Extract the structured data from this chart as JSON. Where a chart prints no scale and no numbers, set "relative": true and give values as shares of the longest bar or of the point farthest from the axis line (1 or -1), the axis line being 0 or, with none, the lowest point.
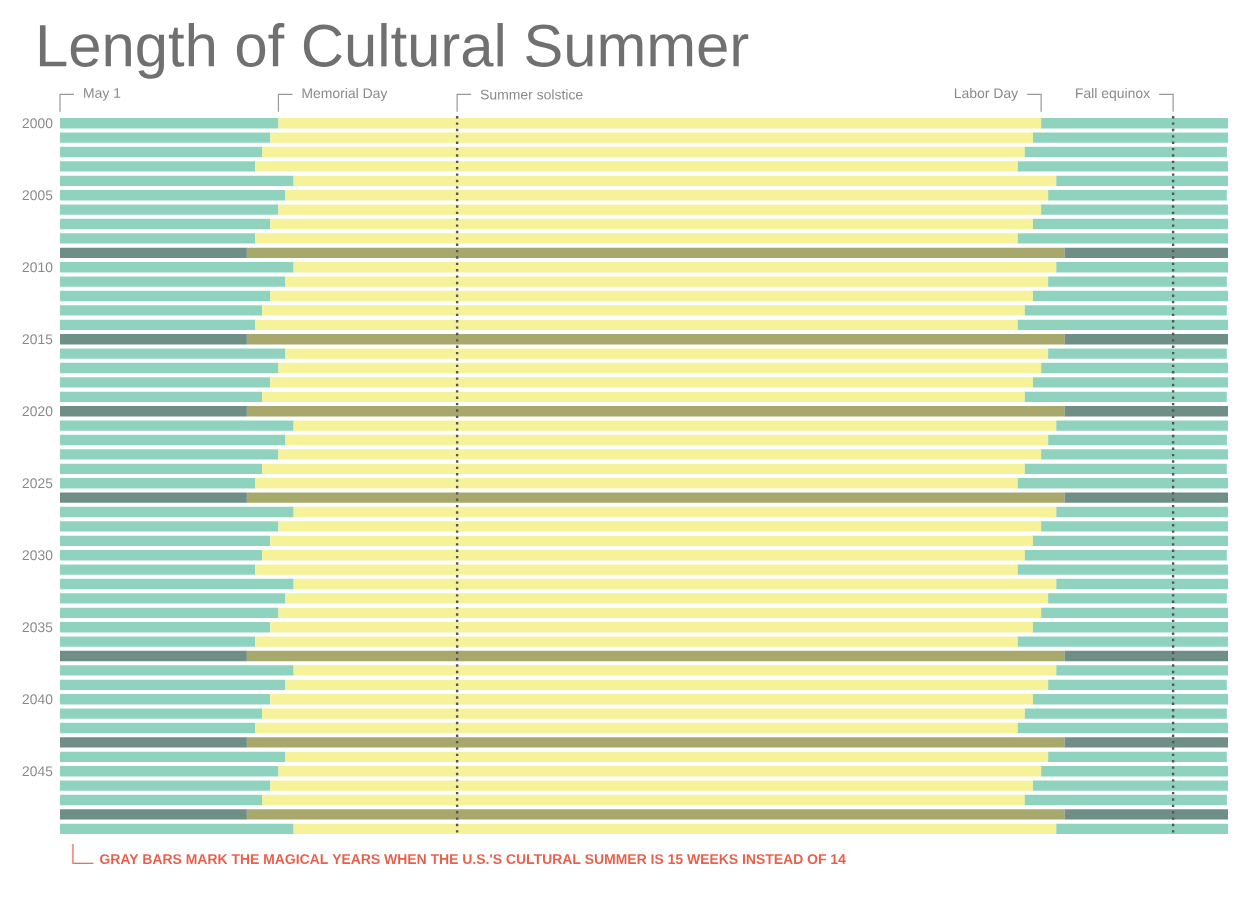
{
  "chart_data": {
    "type": "bar",
    "orientation": "horizontal",
    "stacked": true,
    "relative": true,
    "title": "Length of Cultural Summer",
    "categories": [
      "2000",
      null,
      null,
      null,
      null,
      "2005",
      null,
      null,
      null,
      null,
      "2010",
      null,
      null,
      null,
      null,
      "2015",
      null,
      null,
      null,
      null,
      "2020",
      null,
      null,
      null,
      null,
      "2025",
      null,
      null,
      null,
      null,
      "2030",
      null,
      null,
      null,
      null,
      "2035",
      null,
      null,
      null,
      null,
      "2040",
      null,
      null,
      null,
      null,
      "2045",
      null,
      null,
      null,
      null
    ],
    "series": [
      {
        "values": [
          0.187,
          0.18,
          0.173,
          0.167,
          0.2,
          0.193,
          0.187,
          0.18,
          0.167,
          0.16,
          0.2,
          0.193,
          0.18,
          0.173,
          0.167,
          0.16,
          0.193,
          0.187,
          0.18,
          0.173,
          0.16,
          0.2,
          0.193,
          0.187,
          0.173,
          0.167,
          0.16,
          0.2,
          0.187,
          0.18,
          0.173,
          0.167,
          0.2,
          0.193,
          0.187,
          0.18,
          0.167,
          0.16,
          0.2,
          0.193,
          0.18,
          0.173,
          0.167,
          0.16,
          0.193,
          0.187,
          0.18,
          0.173,
          0.16,
          0.2
        ],
        "colors": [
          "#8fd3bf",
          "#8fd3bf",
          "#8fd3bf",
          "#8fd3bf",
          "#8fd3bf",
          "#8fd3bf",
          "#8fd3bf",
          "#8fd3bf",
          "#8fd3bf",
          "#6f8f86",
          "#8fd3bf",
          "#8fd3bf",
          "#8fd3bf",
          "#8fd3bf",
          "#8fd3bf",
          "#6f8f86",
          "#8fd3bf",
          "#8fd3bf",
          "#8fd3bf",
          "#8fd3bf",
          "#6f8f86",
          "#8fd3bf",
          "#8fd3bf",
          "#8fd3bf",
          "#8fd3bf",
          "#8fd3bf",
          "#6f8f86",
          "#8fd3bf",
          "#8fd3bf",
          "#8fd3bf",
          "#8fd3bf",
          "#8fd3bf",
          "#8fd3bf",
          "#8fd3bf",
          "#8fd3bf",
          "#8fd3bf",
          "#8fd3bf",
          "#6f8f86",
          "#8fd3bf",
          "#8fd3bf",
          "#8fd3bf",
          "#8fd3bf",
          "#8fd3bf",
          "#6f8f86",
          "#8fd3bf",
          "#8fd3bf",
          "#8fd3bf",
          "#8fd3bf",
          "#6f8f86",
          "#8fd3bf"
        ]
      },
      {
        "values": [
          0.653,
          0.653,
          0.653,
          0.653,
          0.653,
          0.653,
          0.653,
          0.653,
          0.653,
          0.7,
          0.653,
          0.653,
          0.653,
          0.653,
          0.653,
          0.7,
          0.653,
          0.653,
          0.653,
          0.653,
          0.7,
          0.653,
          0.653,
          0.653,
          0.653,
          0.653,
          0.7,
          0.653,
          0.653,
          0.653,
          0.653,
          0.653,
          0.653,
          0.653,
          0.653,
          0.653,
          0.653,
          0.7,
          0.653,
          0.653,
          0.653,
          0.653,
          0.653,
          0.7,
          0.653,
          0.653,
          0.653,
          0.653,
          0.7,
          0.653
        ],
        "colors": [
          "#f6f29a",
          "#f6f29a",
          "#f6f29a",
          "#f6f29a",
          "#f6f29a",
          "#f6f29a",
          "#f6f29a",
          "#f6f29a",
          "#f6f29a",
          "#a9a86c",
          "#f6f29a",
          "#f6f29a",
          "#f6f29a",
          "#f6f29a",
          "#f6f29a",
          "#a9a86c",
          "#f6f29a",
          "#f6f29a",
          "#f6f29a",
          "#f6f29a",
          "#a9a86c",
          "#f6f29a",
          "#f6f29a",
          "#f6f29a",
          "#f6f29a",
          "#f6f29a",
          "#a9a86c",
          "#f6f29a",
          "#f6f29a",
          "#f6f29a",
          "#f6f29a",
          "#f6f29a",
          "#f6f29a",
          "#f6f29a",
          "#f6f29a",
          "#f6f29a",
          "#f6f29a",
          "#a9a86c",
          "#f6f29a",
          "#f6f29a",
          "#f6f29a",
          "#f6f29a",
          "#f6f29a",
          "#a9a86c",
          "#f6f29a",
          "#f6f29a",
          "#f6f29a",
          "#f6f29a",
          "#a9a86c",
          "#f6f29a"
        ]
      },
      {
        "values": [
          0.16,
          0.167,
          0.173,
          0.18,
          0.147,
          0.153,
          0.16,
          0.167,
          0.18,
          0.14,
          0.147,
          0.153,
          0.167,
          0.173,
          0.18,
          0.14,
          0.153,
          0.16,
          0.167,
          0.173,
          0.14,
          0.147,
          0.153,
          0.16,
          0.173,
          0.18,
          0.14,
          0.147,
          0.16,
          0.167,
          0.173,
          0.18,
          0.147,
          0.153,
          0.16,
          0.167,
          0.18,
          0.14,
          0.147,
          0.153,
          0.167,
          0.173,
          0.18,
          0.14,
          0.153,
          0.16,
          0.167,
          0.173,
          0.14,
          0.147
        ],
        "colors": [
          "#8fd3bf",
          "#8fd3bf",
          "#8fd3bf",
          "#8fd3bf",
          "#8fd3bf",
          "#8fd3bf",
          "#8fd3bf",
          "#8fd3bf",
          "#8fd3bf",
          "#6f8f86",
          "#8fd3bf",
          "#8fd3bf",
          "#8fd3bf",
          "#8fd3bf",
          "#8fd3bf",
          "#6f8f86",
          "#8fd3bf",
          "#8fd3bf",
          "#8fd3bf",
          "#8fd3bf",
          "#6f8f86",
          "#8fd3bf",
          "#8fd3bf",
          "#8fd3bf",
          "#8fd3bf",
          "#8fd3bf",
          "#6f8f86",
          "#8fd3bf",
          "#8fd3bf",
          "#8fd3bf",
          "#8fd3bf",
          "#8fd3bf",
          "#8fd3bf",
          "#8fd3bf",
          "#8fd3bf",
          "#8fd3bf",
          "#8fd3bf",
          "#6f8f86",
          "#8fd3bf",
          "#8fd3bf",
          "#8fd3bf",
          "#8fd3bf",
          "#8fd3bf",
          "#6f8f86",
          "#8fd3bf",
          "#8fd3bf",
          "#8fd3bf",
          "#8fd3bf",
          "#6f8f86",
          "#8fd3bf"
        ]
      }
    ],
    "ref_lines": [
      {
        "axis": "x",
        "value": 0.34,
        "color": "#555555",
        "line_style": "dotted",
        "label": "Summer solstice"
      },
      {
        "axis": "x",
        "value": 0.953,
        "color": "#555555",
        "line_style": "dotted",
        "label": "Fall equinox"
      }
    ],
    "annotations": [
      "May 1",
      "Memorial Day",
      "Labor Day",
      "GRAY BARS MARK THE MAGICAL YEARS WHEN THE U.S.'S CULTURAL SUMMER IS 15 WEEKS INSTEAD OF 14"
    ]
  }
}
